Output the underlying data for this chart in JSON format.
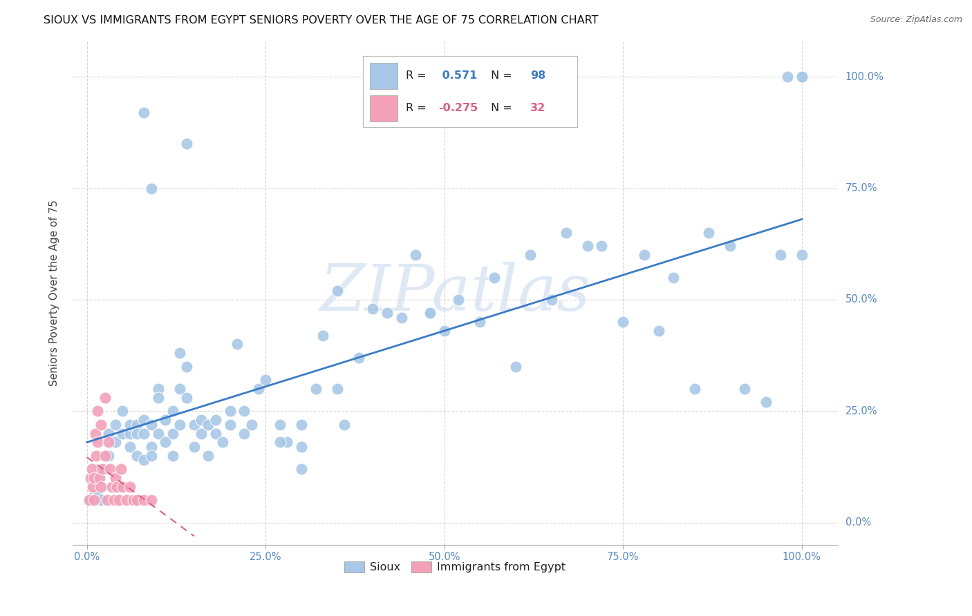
{
  "title": "SIOUX VS IMMIGRANTS FROM EGYPT SENIORS POVERTY OVER THE AGE OF 75 CORRELATION CHART",
  "source": "Source: ZipAtlas.com",
  "ylabel": "Seniors Poverty Over the Age of 75",
  "xlim": [
    -0.02,
    1.05
  ],
  "ylim": [
    -0.05,
    1.08
  ],
  "sioux_color": "#a8c8e8",
  "egypt_color": "#f4a0b8",
  "sioux_R": 0.571,
  "sioux_N": 98,
  "egypt_R": -0.275,
  "egypt_N": 32,
  "sioux_line_color": "#3a7bc8",
  "egypt_line_color": "#e06080",
  "watermark": "ZIPatlas",
  "background_color": "#ffffff",
  "grid_color": "#cccccc",
  "tick_color": "#5588cc",
  "title_fontsize": 11.5,
  "axis_fontsize": 11,
  "tick_fontsize": 10.5,
  "sioux_x": [
    0.005,
    0.01,
    0.015,
    0.02,
    0.025,
    0.03,
    0.03,
    0.04,
    0.04,
    0.05,
    0.05,
    0.06,
    0.06,
    0.06,
    0.07,
    0.07,
    0.07,
    0.08,
    0.08,
    0.08,
    0.09,
    0.09,
    0.09,
    0.1,
    0.1,
    0.1,
    0.11,
    0.11,
    0.12,
    0.12,
    0.12,
    0.13,
    0.13,
    0.14,
    0.14,
    0.15,
    0.15,
    0.16,
    0.16,
    0.17,
    0.17,
    0.18,
    0.18,
    0.19,
    0.2,
    0.2,
    0.21,
    0.22,
    0.22,
    0.23,
    0.24,
    0.25,
    0.27,
    0.28,
    0.3,
    0.3,
    0.32,
    0.33,
    0.35,
    0.36,
    0.38,
    0.4,
    0.42,
    0.44,
    0.46,
    0.48,
    0.5,
    0.52,
    0.55,
    0.57,
    0.6,
    0.62,
    0.65,
    0.67,
    0.7,
    0.72,
    0.75,
    0.78,
    0.8,
    0.82,
    0.85,
    0.87,
    0.9,
    0.92,
    0.95,
    0.97,
    0.98,
    1.0,
    1.0,
    1.0,
    0.35,
    0.27,
    0.3,
    0.48,
    0.14,
    0.08,
    0.09,
    0.13
  ],
  "sioux_y": [
    0.05,
    0.06,
    0.06,
    0.05,
    0.12,
    0.15,
    0.2,
    0.18,
    0.22,
    0.2,
    0.25,
    0.2,
    0.22,
    0.17,
    0.22,
    0.2,
    0.15,
    0.23,
    0.2,
    0.14,
    0.22,
    0.17,
    0.15,
    0.3,
    0.28,
    0.2,
    0.18,
    0.23,
    0.25,
    0.2,
    0.15,
    0.38,
    0.3,
    0.35,
    0.28,
    0.22,
    0.17,
    0.23,
    0.2,
    0.22,
    0.15,
    0.2,
    0.23,
    0.18,
    0.25,
    0.22,
    0.4,
    0.25,
    0.2,
    0.22,
    0.3,
    0.32,
    0.22,
    0.18,
    0.22,
    0.17,
    0.3,
    0.42,
    0.3,
    0.22,
    0.37,
    0.48,
    0.47,
    0.46,
    0.6,
    0.47,
    0.43,
    0.5,
    0.45,
    0.55,
    0.35,
    0.6,
    0.5,
    0.65,
    0.62,
    0.62,
    0.45,
    0.6,
    0.43,
    0.55,
    0.3,
    0.65,
    0.62,
    0.3,
    0.27,
    0.6,
    1.0,
    1.0,
    1.0,
    0.6,
    0.52,
    0.18,
    0.12,
    0.47,
    0.85,
    0.92,
    0.75,
    0.22
  ],
  "egypt_x": [
    0.003,
    0.005,
    0.007,
    0.008,
    0.01,
    0.01,
    0.012,
    0.013,
    0.015,
    0.015,
    0.018,
    0.02,
    0.02,
    0.022,
    0.025,
    0.025,
    0.028,
    0.03,
    0.032,
    0.035,
    0.038,
    0.04,
    0.042,
    0.045,
    0.048,
    0.05,
    0.055,
    0.06,
    0.065,
    0.07,
    0.08,
    0.09
  ],
  "egypt_y": [
    0.05,
    0.1,
    0.12,
    0.08,
    0.1,
    0.05,
    0.2,
    0.15,
    0.18,
    0.25,
    0.1,
    0.08,
    0.22,
    0.12,
    0.15,
    0.28,
    0.05,
    0.18,
    0.12,
    0.08,
    0.05,
    0.1,
    0.08,
    0.05,
    0.12,
    0.08,
    0.05,
    0.08,
    0.05,
    0.05,
    0.05,
    0.05
  ]
}
